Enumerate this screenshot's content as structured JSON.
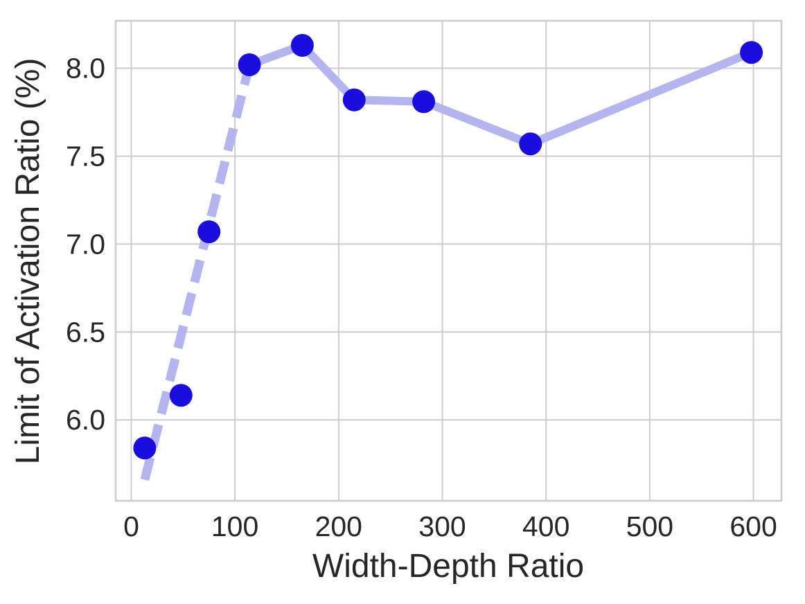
{
  "chart_data": {
    "type": "line",
    "title": "",
    "xlabel": "Width-Depth Ratio",
    "ylabel": "Limit of Activation Ratio (%)",
    "series": [
      {
        "name": "limit_of_activation_ratio",
        "x": [
          13,
          48,
          75,
          114,
          165,
          215,
          282,
          385,
          598
        ],
        "y": [
          5.84,
          6.14,
          7.07,
          8.02,
          8.13,
          7.82,
          7.81,
          7.57,
          8.09
        ],
        "solid_from_index": 3
      }
    ],
    "fit_line": {
      "style": "dashed",
      "x": [
        13,
        114
      ],
      "y": [
        5.66,
        8.02
      ]
    },
    "xticks": [
      0,
      100,
      200,
      300,
      400,
      500,
      600
    ],
    "xtick_labels": [
      "0",
      "100",
      "200",
      "300",
      "400",
      "500",
      "600"
    ],
    "yticks": [
      6.0,
      6.5,
      7.0,
      7.5,
      8.0
    ],
    "ytick_labels": [
      "6.0",
      "6.5",
      "7.0",
      "7.5",
      "8.0"
    ],
    "xlim": [
      -15,
      627
    ],
    "ylim": [
      5.54,
      8.27
    ],
    "grid": true,
    "legend": false,
    "colors": {
      "marker": "#1a0de0",
      "line": "#b4b4f0",
      "grid": "#cccccc",
      "spine": "#cccccc",
      "text": "#262626",
      "background": "#ffffff"
    }
  }
}
